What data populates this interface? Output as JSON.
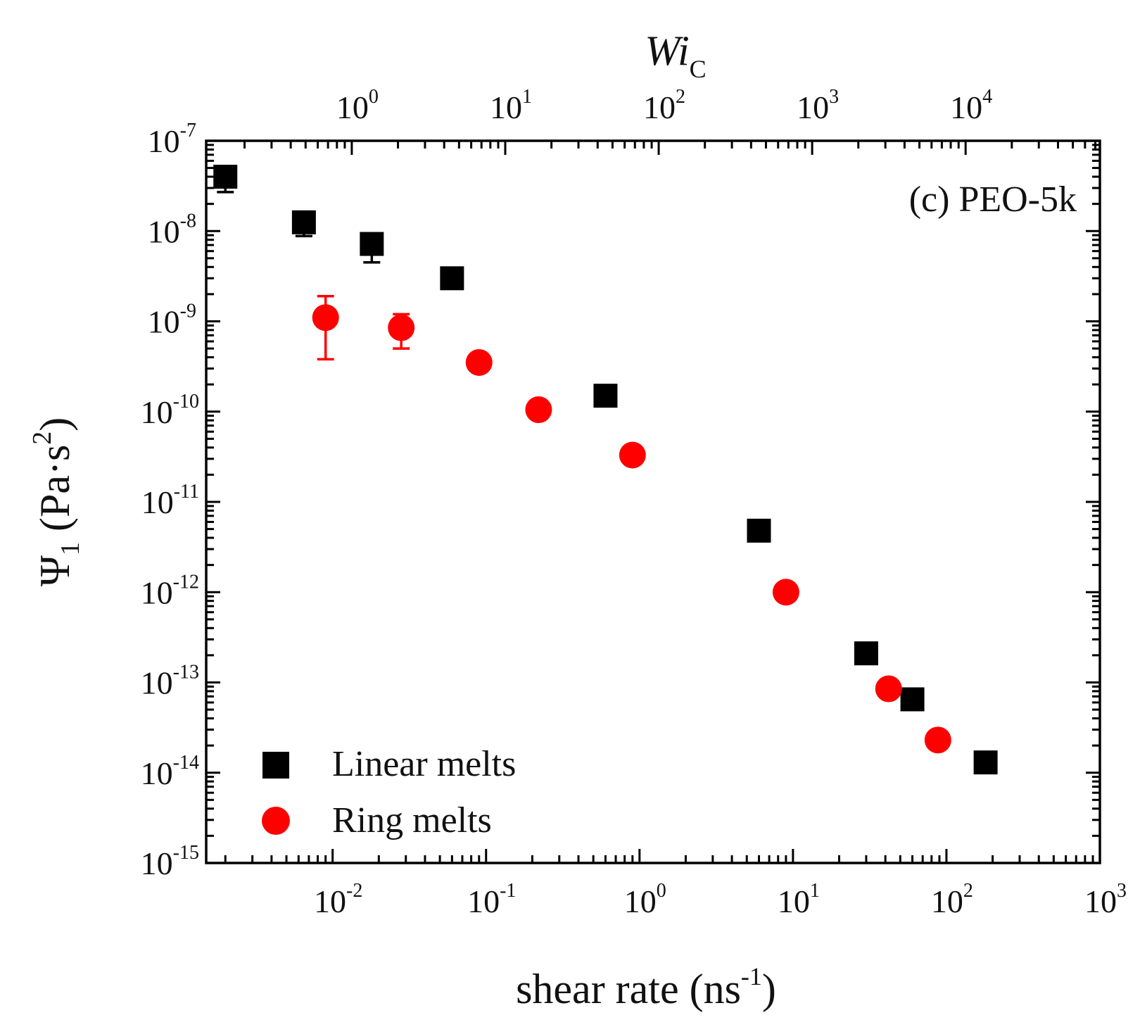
{
  "chart_data": {
    "type": "scatter",
    "title": "",
    "annotation": "(c) PEO-5k",
    "xlabel": {
      "main": "shear rate (ns",
      "sup": "-1",
      "tail": ")"
    },
    "ylabel": {
      "sym": "Ψ",
      "sub": "1",
      "unit": " (Pa·s",
      "sup": "2",
      "tail": ")"
    },
    "top_axis_label": {
      "main": "Wi",
      "sub": "C"
    },
    "x_scale": "log",
    "y_scale": "log",
    "xlim": [
      0.0015,
      1000
    ],
    "ylim": [
      1e-15,
      1e-07
    ],
    "x_ticks": [
      {
        "value": 0.01,
        "base": "10",
        "exp": "-2"
      },
      {
        "value": 0.1,
        "base": "10",
        "exp": "-1"
      },
      {
        "value": 1,
        "base": "10",
        "exp": "0"
      },
      {
        "value": 10,
        "base": "10",
        "exp": "1"
      },
      {
        "value": 100,
        "base": "10",
        "exp": "2"
      },
      {
        "value": 1000,
        "base": "10",
        "exp": "3"
      }
    ],
    "y_ticks": [
      {
        "value": 1e-07,
        "base": "10",
        "exp": "-7"
      },
      {
        "value": 1e-08,
        "base": "10",
        "exp": "-8"
      },
      {
        "value": 1e-09,
        "base": "10",
        "exp": "-9"
      },
      {
        "value": 1e-10,
        "base": "10",
        "exp": "-10"
      },
      {
        "value": 1e-11,
        "base": "10",
        "exp": "-11"
      },
      {
        "value": 1e-12,
        "base": "10",
        "exp": "-12"
      },
      {
        "value": 1e-13,
        "base": "10",
        "exp": "-13"
      },
      {
        "value": 1e-14,
        "base": "10",
        "exp": "-14"
      },
      {
        "value": 1e-15,
        "base": "10",
        "exp": "-15"
      }
    ],
    "wi_per_shear_rate": 75,
    "top_ticks": [
      {
        "value": 1,
        "base": "10",
        "exp": "0"
      },
      {
        "value": 10,
        "base": "10",
        "exp": "1"
      },
      {
        "value": 100,
        "base": "10",
        "exp": "2"
      },
      {
        "value": 1000,
        "base": "10",
        "exp": "3"
      },
      {
        "value": 10000,
        "base": "10",
        "exp": "4"
      }
    ],
    "legend_position": "bottom-left",
    "series": [
      {
        "name": "Linear melts",
        "marker": "square",
        "color": "#000000",
        "points": [
          {
            "x": 0.002,
            "y": 4e-08,
            "err_lo": 2.7e-08,
            "err_hi": 4.2e-08
          },
          {
            "x": 0.0065,
            "y": 1.25e-08,
            "err_lo": 8.8e-09,
            "err_hi": 1.3e-08
          },
          {
            "x": 0.018,
            "y": 7.2e-09,
            "err_lo": 4.5e-09,
            "err_hi": 7.5e-09
          },
          {
            "x": 0.06,
            "y": 3e-09
          },
          {
            "x": 0.6,
            "y": 1.5e-10
          },
          {
            "x": 6.0,
            "y": 4.8e-12
          },
          {
            "x": 30,
            "y": 2.1e-13
          },
          {
            "x": 60,
            "y": 6.5e-14
          },
          {
            "x": 180,
            "y": 1.3e-14
          }
        ]
      },
      {
        "name": "Ring melts",
        "marker": "circle",
        "color": "#ff0000",
        "points": [
          {
            "x": 0.009,
            "y": 1.1e-09,
            "err_lo": 3.8e-10,
            "err_hi": 1.9e-09
          },
          {
            "x": 0.028,
            "y": 8.5e-10,
            "err_lo": 5e-10,
            "err_hi": 1.2e-09
          },
          {
            "x": 0.09,
            "y": 3.5e-10
          },
          {
            "x": 0.22,
            "y": 1.05e-10
          },
          {
            "x": 0.9,
            "y": 3.3e-11
          },
          {
            "x": 9.0,
            "y": 1e-12
          },
          {
            "x": 42,
            "y": 8.5e-14
          },
          {
            "x": 88,
            "y": 2.3e-14
          }
        ]
      }
    ]
  }
}
